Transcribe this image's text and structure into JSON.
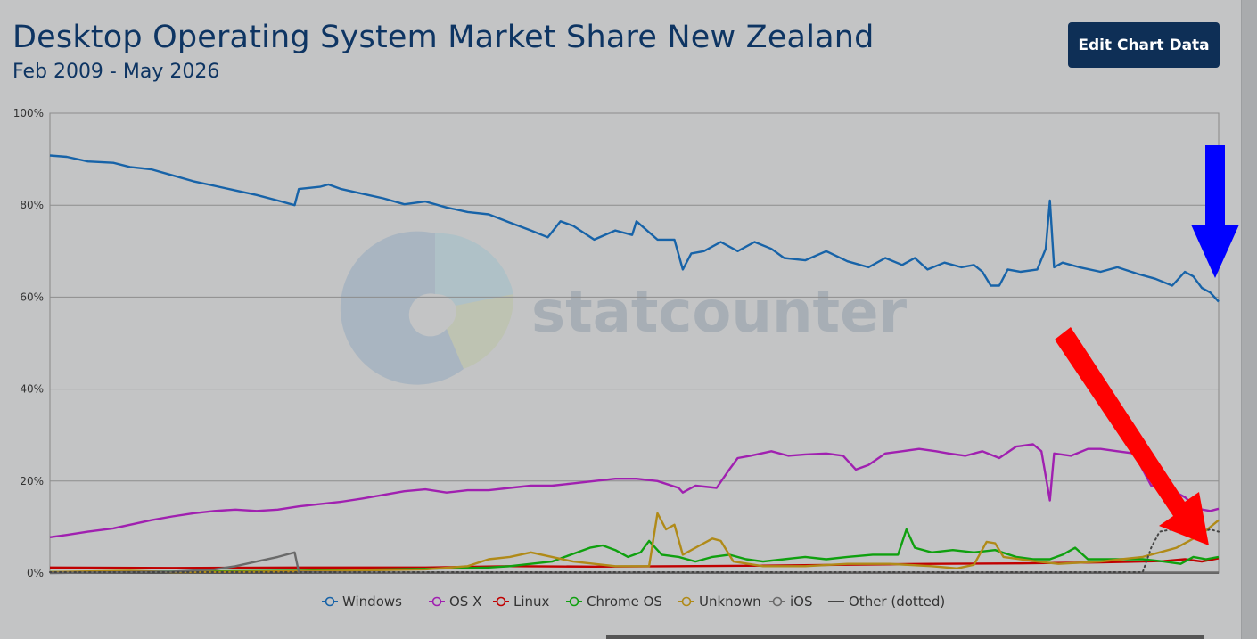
{
  "header": {
    "title": "Desktop Operating System Market Share New Zealand",
    "subtitle": "Feb 2009 - May 2026",
    "edit_button": "Edit Chart Data"
  },
  "watermark": {
    "text": "statcounter"
  },
  "colors": {
    "windows": "#1763a8",
    "osx": "#a020b0",
    "linux": "#c00000",
    "chromeos": "#0fa00f",
    "unknown": "#b08a18",
    "ios": "#6a6a6a",
    "other": "#444444",
    "arrow_blue": "#0000ff",
    "arrow_red": "#ff0000"
  },
  "chart_data": {
    "type": "line",
    "title": "Desktop Operating System Market Share New Zealand",
    "subtitle": "Feb 2009 - May 2026",
    "x_range": [
      "2009-02",
      "2026-05"
    ],
    "ylim": [
      0,
      100
    ],
    "y_unit": "%",
    "y_ticks": [
      "0%",
      "20%",
      "40%",
      "60%",
      "80%",
      "100%"
    ],
    "grid": true,
    "legend_position": "bottom",
    "series": [
      {
        "name": "Windows",
        "key": "windows",
        "style": "solid",
        "points": [
          [
            2009.1,
            90.8
          ],
          [
            2009.5,
            90.5
          ],
          [
            2010.0,
            89.5
          ],
          [
            2010.6,
            89.2
          ],
          [
            2011.0,
            88.3
          ],
          [
            2011.5,
            87.8
          ],
          [
            2012.0,
            86.5
          ],
          [
            2012.5,
            85.2
          ],
          [
            2013.0,
            84.2
          ],
          [
            2013.5,
            83.2
          ],
          [
            2014.0,
            82.2
          ],
          [
            2014.5,
            81.0
          ],
          [
            2014.9,
            80.0
          ],
          [
            2015.0,
            83.5
          ],
          [
            2015.5,
            84.0
          ],
          [
            2015.7,
            84.5
          ],
          [
            2016.0,
            83.5
          ],
          [
            2016.5,
            82.5
          ],
          [
            2017.0,
            81.5
          ],
          [
            2017.5,
            80.2
          ],
          [
            2018.0,
            80.8
          ],
          [
            2018.5,
            79.5
          ],
          [
            2019.0,
            78.5
          ],
          [
            2019.5,
            78.0
          ],
          [
            2020.0,
            76.2
          ],
          [
            2020.5,
            74.5
          ],
          [
            2020.9,
            73.0
          ],
          [
            2021.2,
            76.5
          ],
          [
            2021.5,
            75.5
          ],
          [
            2022.0,
            72.5
          ],
          [
            2022.5,
            74.5
          ],
          [
            2022.9,
            73.5
          ],
          [
            2023.0,
            76.5
          ],
          [
            2023.5,
            72.5
          ],
          [
            2023.9,
            72.5
          ],
          [
            2024.1,
            66.0
          ],
          [
            2024.3,
            69.5
          ],
          [
            2024.6,
            70.0
          ],
          [
            2025.0,
            72.0
          ],
          [
            2025.4,
            70.0
          ],
          [
            2025.8,
            72.0
          ],
          [
            2026.2,
            70.5
          ],
          [
            2026.5,
            68.5
          ],
          [
            2027.0,
            68.0
          ],
          [
            2027.5,
            70.0
          ],
          [
            2028.0,
            67.8
          ],
          [
            2028.5,
            66.5
          ],
          [
            2028.9,
            68.5
          ],
          [
            2029.3,
            67.0
          ],
          [
            2029.6,
            68.5
          ],
          [
            2029.9,
            66.0
          ],
          [
            2030.3,
            67.5
          ],
          [
            2030.7,
            66.5
          ],
          [
            2031.0,
            67.0
          ],
          [
            2031.2,
            65.5
          ],
          [
            2031.4,
            62.5
          ],
          [
            2031.6,
            62.5
          ],
          [
            2031.8,
            66.0
          ],
          [
            2032.1,
            65.5
          ],
          [
            2032.5,
            66.0
          ],
          [
            2032.7,
            70.5
          ],
          [
            2032.8,
            81.0
          ],
          [
            2032.9,
            66.5
          ],
          [
            2033.1,
            67.5
          ],
          [
            2033.5,
            66.5
          ],
          [
            2034.0,
            65.5
          ],
          [
            2034.4,
            66.5
          ],
          [
            2034.9,
            65.0
          ],
          [
            2035.3,
            64.0
          ],
          [
            2035.7,
            62.5
          ],
          [
            2036.0,
            65.5
          ],
          [
            2036.2,
            64.5
          ],
          [
            2036.4,
            62.0
          ],
          [
            2036.6,
            61.0
          ],
          [
            2036.8,
            59.0
          ]
        ]
      },
      {
        "name": "OS X",
        "key": "osx",
        "style": "solid",
        "points": [
          [
            2009.1,
            7.8
          ],
          [
            2009.5,
            8.3
          ],
          [
            2010.0,
            9.0
          ],
          [
            2010.6,
            9.7
          ],
          [
            2011.0,
            10.5
          ],
          [
            2011.5,
            11.5
          ],
          [
            2012.0,
            12.3
          ],
          [
            2012.5,
            13.0
          ],
          [
            2013.0,
            13.5
          ],
          [
            2013.5,
            13.8
          ],
          [
            2014.0,
            13.5
          ],
          [
            2014.5,
            13.8
          ],
          [
            2015.0,
            14.5
          ],
          [
            2015.5,
            15.0
          ],
          [
            2016.0,
            15.5
          ],
          [
            2016.5,
            16.2
          ],
          [
            2017.0,
            17.0
          ],
          [
            2017.5,
            17.8
          ],
          [
            2018.0,
            18.2
          ],
          [
            2018.5,
            17.5
          ],
          [
            2019.0,
            18.0
          ],
          [
            2019.5,
            18.0
          ],
          [
            2020.0,
            18.5
          ],
          [
            2020.5,
            19.0
          ],
          [
            2021.0,
            19.0
          ],
          [
            2021.5,
            19.5
          ],
          [
            2022.0,
            20.0
          ],
          [
            2022.5,
            20.5
          ],
          [
            2023.0,
            20.5
          ],
          [
            2023.5,
            20.0
          ],
          [
            2024.0,
            18.5
          ],
          [
            2024.1,
            17.5
          ],
          [
            2024.4,
            19.0
          ],
          [
            2024.9,
            18.5
          ],
          [
            2025.2,
            22.5
          ],
          [
            2025.4,
            25.0
          ],
          [
            2025.7,
            25.5
          ],
          [
            2026.2,
            26.5
          ],
          [
            2026.6,
            25.5
          ],
          [
            2027.0,
            25.8
          ],
          [
            2027.5,
            26.0
          ],
          [
            2027.9,
            25.5
          ],
          [
            2028.2,
            22.5
          ],
          [
            2028.5,
            23.5
          ],
          [
            2028.9,
            26.0
          ],
          [
            2029.3,
            26.5
          ],
          [
            2029.7,
            27.0
          ],
          [
            2030.1,
            26.5
          ],
          [
            2030.4,
            26.0
          ],
          [
            2030.8,
            25.5
          ],
          [
            2031.2,
            26.5
          ],
          [
            2031.6,
            25.0
          ],
          [
            2032.0,
            27.5
          ],
          [
            2032.4,
            28.0
          ],
          [
            2032.6,
            26.5
          ],
          [
            2032.8,
            15.8
          ],
          [
            2032.9,
            26.0
          ],
          [
            2033.3,
            25.5
          ],
          [
            2033.7,
            27.0
          ],
          [
            2034.0,
            27.0
          ],
          [
            2034.4,
            26.5
          ],
          [
            2034.8,
            26.0
          ],
          [
            2035.2,
            19.0
          ],
          [
            2035.6,
            18.5
          ],
          [
            2036.0,
            16.5
          ],
          [
            2036.3,
            14.0
          ],
          [
            2036.6,
            13.5
          ],
          [
            2036.8,
            14.0
          ]
        ]
      },
      {
        "name": "Linux",
        "key": "linux",
        "style": "solid",
        "points": [
          [
            2009.1,
            1.2
          ],
          [
            2012.0,
            1.1
          ],
          [
            2015.0,
            1.2
          ],
          [
            2018.0,
            1.2
          ],
          [
            2020.0,
            1.5
          ],
          [
            2022.0,
            1.4
          ],
          [
            2024.0,
            1.5
          ],
          [
            2026.0,
            1.6
          ],
          [
            2028.0,
            1.8
          ],
          [
            2030.0,
            2.0
          ],
          [
            2032.0,
            2.1
          ],
          [
            2034.0,
            2.3
          ],
          [
            2035.5,
            2.6
          ],
          [
            2036.0,
            3.0
          ],
          [
            2036.4,
            2.5
          ],
          [
            2036.8,
            3.2
          ]
        ]
      },
      {
        "name": "Chrome OS",
        "key": "chromeos",
        "style": "solid",
        "points": [
          [
            2009.1,
            0.2
          ],
          [
            2012.0,
            0.3
          ],
          [
            2015.0,
            0.5
          ],
          [
            2017.0,
            0.8
          ],
          [
            2018.5,
            1.0
          ],
          [
            2019.5,
            1.2
          ],
          [
            2020.0,
            1.5
          ],
          [
            2020.5,
            2.0
          ],
          [
            2021.0,
            2.5
          ],
          [
            2021.3,
            3.5
          ],
          [
            2021.6,
            4.5
          ],
          [
            2021.9,
            5.5
          ],
          [
            2022.2,
            6.0
          ],
          [
            2022.5,
            5.0
          ],
          [
            2022.8,
            3.5
          ],
          [
            2023.1,
            4.5
          ],
          [
            2023.3,
            7.0
          ],
          [
            2023.6,
            4.0
          ],
          [
            2024.0,
            3.5
          ],
          [
            2024.4,
            2.5
          ],
          [
            2024.8,
            3.5
          ],
          [
            2025.2,
            4.0
          ],
          [
            2025.6,
            3.0
          ],
          [
            2026.0,
            2.5
          ],
          [
            2026.5,
            3.0
          ],
          [
            2027.0,
            3.5
          ],
          [
            2027.5,
            3.0
          ],
          [
            2028.0,
            3.5
          ],
          [
            2028.6,
            4.0
          ],
          [
            2029.2,
            4.0
          ],
          [
            2029.4,
            9.5
          ],
          [
            2029.6,
            5.5
          ],
          [
            2030.0,
            4.5
          ],
          [
            2030.5,
            5.0
          ],
          [
            2031.0,
            4.5
          ],
          [
            2031.5,
            5.0
          ],
          [
            2032.0,
            3.5
          ],
          [
            2032.4,
            3.0
          ],
          [
            2032.8,
            3.0
          ],
          [
            2033.1,
            4.0
          ],
          [
            2033.4,
            5.5
          ],
          [
            2033.7,
            3.0
          ],
          [
            2034.0,
            3.0
          ],
          [
            2034.5,
            3.0
          ],
          [
            2035.0,
            3.0
          ],
          [
            2035.5,
            2.5
          ],
          [
            2035.9,
            2.0
          ],
          [
            2036.2,
            3.5
          ],
          [
            2036.5,
            3.0
          ],
          [
            2036.8,
            3.5
          ]
        ]
      },
      {
        "name": "Unknown",
        "key": "unknown",
        "style": "solid",
        "points": [
          [
            2009.1,
            0.2
          ],
          [
            2011.0,
            0.5
          ],
          [
            2012.0,
            0.2
          ],
          [
            2014.0,
            0.3
          ],
          [
            2016.0,
            0.5
          ],
          [
            2018.0,
            0.8
          ],
          [
            2019.0,
            1.5
          ],
          [
            2019.5,
            3.0
          ],
          [
            2020.0,
            3.5
          ],
          [
            2020.5,
            4.5
          ],
          [
            2021.0,
            3.5
          ],
          [
            2021.5,
            2.5
          ],
          [
            2022.0,
            2.0
          ],
          [
            2022.5,
            1.5
          ],
          [
            2023.0,
            1.5
          ],
          [
            2023.3,
            1.5
          ],
          [
            2023.5,
            13.0
          ],
          [
            2023.7,
            9.5
          ],
          [
            2023.9,
            10.5
          ],
          [
            2024.1,
            4.0
          ],
          [
            2024.5,
            6.0
          ],
          [
            2024.8,
            7.5
          ],
          [
            2025.0,
            7.0
          ],
          [
            2025.3,
            2.5
          ],
          [
            2026.0,
            1.5
          ],
          [
            2027.0,
            1.5
          ],
          [
            2028.0,
            2.0
          ],
          [
            2029.0,
            2.0
          ],
          [
            2030.0,
            1.5
          ],
          [
            2030.6,
            1.0
          ],
          [
            2031.0,
            1.8
          ],
          [
            2031.3,
            6.8
          ],
          [
            2031.5,
            6.5
          ],
          [
            2031.7,
            3.5
          ],
          [
            2032.5,
            2.5
          ],
          [
            2033.0,
            2.0
          ],
          [
            2034.0,
            2.5
          ],
          [
            2034.5,
            3.0
          ],
          [
            2035.0,
            3.5
          ],
          [
            2035.4,
            4.5
          ],
          [
            2035.8,
            5.5
          ],
          [
            2036.1,
            7.0
          ],
          [
            2036.4,
            8.5
          ],
          [
            2036.6,
            10.0
          ],
          [
            2036.8,
            11.5
          ]
        ]
      },
      {
        "name": "iOS",
        "key": "ios",
        "style": "solid",
        "points": [
          [
            2009.1,
            0
          ],
          [
            2012.0,
            0.3
          ],
          [
            2013.0,
            0.8
          ],
          [
            2013.5,
            1.5
          ],
          [
            2014.0,
            2.5
          ],
          [
            2014.5,
            3.5
          ],
          [
            2014.9,
            4.5
          ],
          [
            2015.0,
            0.2
          ],
          [
            2016.0,
            0.1
          ],
          [
            2020.0,
            0.1
          ],
          [
            2025.0,
            0.1
          ],
          [
            2030.0,
            0.1
          ],
          [
            2036.8,
            0.1
          ]
        ]
      },
      {
        "name": "Other (dotted)",
        "key": "other",
        "style": "dotted",
        "points": [
          [
            2009.1,
            0.2
          ],
          [
            2015.0,
            0.2
          ],
          [
            2020.0,
            0.2
          ],
          [
            2025.0,
            0.2
          ],
          [
            2030.0,
            0.2
          ],
          [
            2035.0,
            0.2
          ],
          [
            2035.2,
            5.5
          ],
          [
            2035.4,
            9.0
          ],
          [
            2035.7,
            9.5
          ],
          [
            2036.0,
            9.0
          ],
          [
            2036.3,
            8.5
          ],
          [
            2036.6,
            9.5
          ],
          [
            2036.8,
            9.0
          ]
        ]
      }
    ]
  },
  "legend": [
    {
      "label": "Windows",
      "key": "windows",
      "marker": "circle"
    },
    {
      "label": "OS X",
      "key": "osx",
      "marker": "circle"
    },
    {
      "label": "Linux",
      "key": "linux",
      "marker": "circle"
    },
    {
      "label": "Chrome OS",
      "key": "chromeos",
      "marker": "circle"
    },
    {
      "label": "Unknown",
      "key": "unknown",
      "marker": "circle"
    },
    {
      "label": "iOS",
      "key": "ios",
      "marker": "circle"
    },
    {
      "label": "Other (dotted)",
      "key": "other",
      "marker": "line"
    }
  ],
  "annotations": [
    {
      "type": "arrow",
      "color": "arrow_blue",
      "target_series": "Windows",
      "direction": "down"
    },
    {
      "type": "arrow",
      "color": "arrow_red",
      "target_series": "Unknown",
      "direction": "down-right"
    }
  ]
}
